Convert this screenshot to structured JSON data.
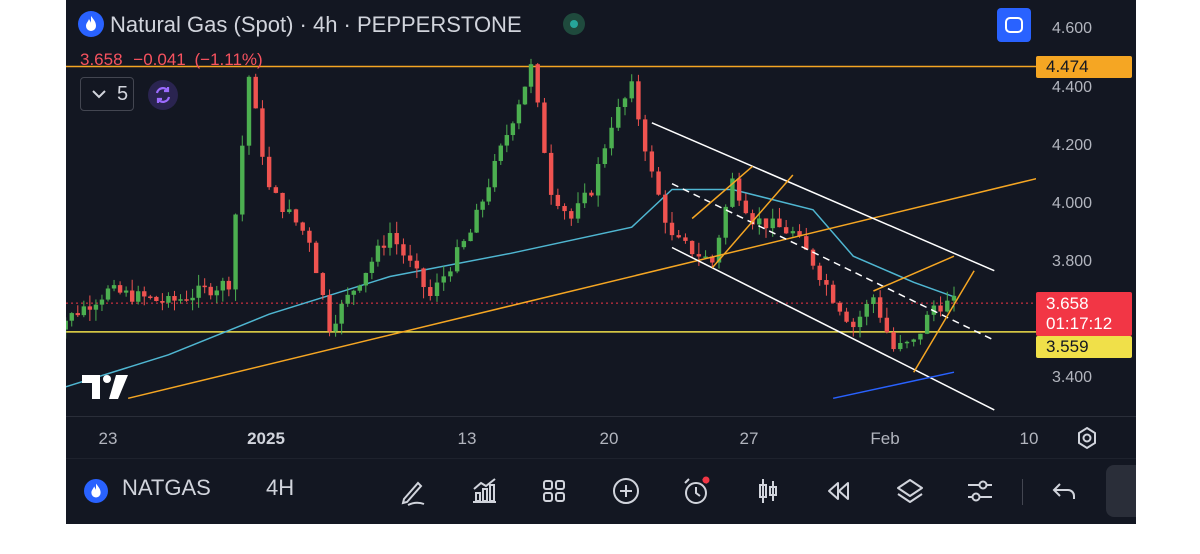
{
  "header": {
    "title": "Natural Gas (Spot) · 4h · PEPPERSTONE",
    "last": "3.658",
    "change": "−0.041",
    "change_pct": "(−1.11%)",
    "indicator_count": "5"
  },
  "logo_text": "17",
  "price_axis": {
    "labels": [
      "4.600",
      "4.400",
      "4.200",
      "4.000",
      "3.800",
      "3.400"
    ],
    "resistance_tag": "4.474",
    "current_price_tag": "3.658",
    "countdown": "01:17:12",
    "support_tag": "3.559"
  },
  "time_axis": {
    "labels": [
      "23",
      "2025",
      "13",
      "20",
      "27",
      "Feb",
      "10"
    ]
  },
  "bottom_bar": {
    "symbol": "NATGAS",
    "interval": "4H",
    "tools": [
      "draw-icon",
      "indicators-icon",
      "layout-grid-icon",
      "add-icon",
      "alert-icon",
      "candle-type-icon",
      "replay-icon",
      "layers-icon",
      "settings-icon",
      "undo-icon"
    ]
  },
  "colors": {
    "background": "#131722",
    "up": "#4caf50",
    "down": "#ef5350",
    "resistance": "#f5a623",
    "support": "#f0e049",
    "ma": "#4fb6d1",
    "trendline_blue": "#2962ff",
    "price_tag": "#f23645"
  },
  "chart_data": {
    "type": "candlestick",
    "title": "Natural Gas (Spot) · 4h · PEPPERSTONE",
    "ylim": [
      3.33,
      4.66
    ],
    "y_ticks": [
      4.6,
      4.4,
      4.2,
      4.0,
      3.8,
      3.4
    ],
    "x_ticks": [
      "23",
      "2025",
      "13",
      "20",
      "27",
      "Feb",
      "10"
    ],
    "horizontal_levels": {
      "resistance": 4.474,
      "support": 3.559,
      "last": 3.658
    },
    "close_path": [
      {
        "x": "Dec 20",
        "y": 3.56
      },
      {
        "x": "Dec 23",
        "y": 3.7
      },
      {
        "x": "Dec 26",
        "y": 3.66
      },
      {
        "x": "Dec 29",
        "y": 3.73
      },
      {
        "x": "Dec 30",
        "y": 4.44
      },
      {
        "x": "Dec 31",
        "y": 4.05
      },
      {
        "x": "Jan 2",
        "y": 3.88
      },
      {
        "x": "Jan 3",
        "y": 3.58
      },
      {
        "x": "Jan 6",
        "y": 3.9
      },
      {
        "x": "Jan 8",
        "y": 3.68
      },
      {
        "x": "Jan 10",
        "y": 3.9
      },
      {
        "x": "Jan 13",
        "y": 4.47
      },
      {
        "x": "Jan 14",
        "y": 4.05
      },
      {
        "x": "Jan 15",
        "y": 3.95
      },
      {
        "x": "Jan 16",
        "y": 4.05
      },
      {
        "x": "Jan 17",
        "y": 4.28
      },
      {
        "x": "Jan 18",
        "y": 4.4
      },
      {
        "x": "Jan 19",
        "y": 4.1
      },
      {
        "x": "Jan 20",
        "y": 3.88
      },
      {
        "x": "Jan 22",
        "y": 3.8
      },
      {
        "x": "Jan 23",
        "y": 4.08
      },
      {
        "x": "Jan 24",
        "y": 3.95
      },
      {
        "x": "Jan 26",
        "y": 3.9
      },
      {
        "x": "Jan 27",
        "y": 3.8
      },
      {
        "x": "Jan 28",
        "y": 3.68
      },
      {
        "x": "Jan 29",
        "y": 3.58
      },
      {
        "x": "Jan 30",
        "y": 3.68
      },
      {
        "x": "Jan 31",
        "y": 3.5
      },
      {
        "x": "Feb 1",
        "y": 3.52
      },
      {
        "x": "Feb 2",
        "y": 3.65
      },
      {
        "x": "Feb 3",
        "y": 3.66
      }
    ],
    "moving_average": [
      {
        "x": "Dec 20",
        "y": 3.35
      },
      {
        "x": "Dec 26",
        "y": 3.48
      },
      {
        "x": "Dec 31",
        "y": 3.62
      },
      {
        "x": "Jan 6",
        "y": 3.75
      },
      {
        "x": "Jan 12",
        "y": 3.83
      },
      {
        "x": "Jan 18",
        "y": 3.92
      },
      {
        "x": "Jan 20",
        "y": 4.05
      },
      {
        "x": "Jan 23",
        "y": 4.05
      },
      {
        "x": "Jan 27",
        "y": 3.98
      },
      {
        "x": "Jan 29",
        "y": 3.82
      },
      {
        "x": "Feb 1",
        "y": 3.73
      },
      {
        "x": "Feb 3",
        "y": 3.68
      }
    ],
    "drawings": [
      {
        "name": "long-term-rising-trendline",
        "color": "orange",
        "from": {
          "x": "Dec 24",
          "y": 3.33
        },
        "to": {
          "x": "Feb 12",
          "y": 4.17
        }
      },
      {
        "name": "channel-upper",
        "color": "white",
        "from": {
          "x": "Jan 19",
          "y": 4.28
        },
        "to": {
          "x": "Feb 5",
          "y": 3.77
        }
      },
      {
        "name": "channel-lower",
        "color": "white",
        "from": {
          "x": "Jan 20",
          "y": 3.85
        },
        "to": {
          "x": "Feb 5",
          "y": 3.29
        }
      },
      {
        "name": "channel-midline",
        "color": "white-dashed",
        "from": {
          "x": "Jan 20",
          "y": 4.07
        },
        "to": {
          "x": "Feb 5",
          "y": 3.53
        }
      },
      {
        "name": "rising-wedge-1-upper",
        "color": "orange",
        "from": {
          "x": "Jan 21",
          "y": 3.95
        },
        "to": {
          "x": "Jan 24",
          "y": 4.13
        }
      },
      {
        "name": "rising-wedge-1-lower",
        "color": "orange",
        "from": {
          "x": "Jan 22",
          "y": 3.78
        },
        "to": {
          "x": "Jan 26",
          "y": 4.1
        }
      },
      {
        "name": "rising-wedge-2-upper",
        "color": "orange",
        "from": {
          "x": "Jan 30",
          "y": 3.7
        },
        "to": {
          "x": "Feb 3",
          "y": 3.82
        }
      },
      {
        "name": "rising-wedge-2-lower",
        "color": "orange",
        "from": {
          "x": "Feb 1",
          "y": 3.42
        },
        "to": {
          "x": "Feb 4",
          "y": 3.77
        }
      },
      {
        "name": "blue-trendline",
        "color": "blue",
        "from": {
          "x": "Jan 28",
          "y": 3.33
        },
        "to": {
          "x": "Feb 3",
          "y": 3.42
        }
      }
    ]
  }
}
